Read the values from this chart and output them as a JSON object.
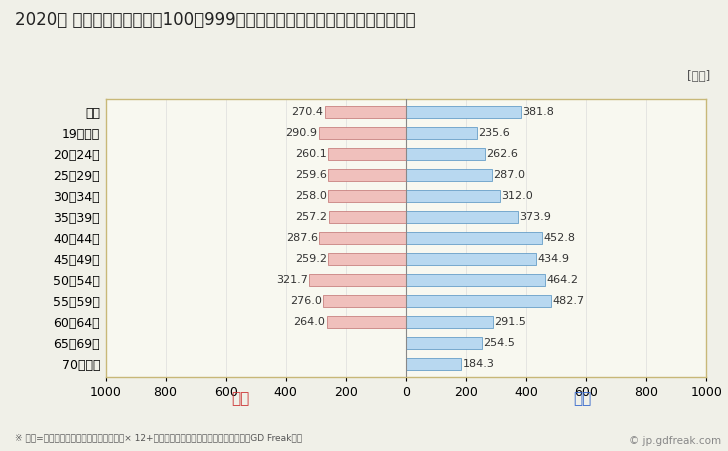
{
  "title": "2020年 民間企業（従業者数100～999人）フルタイム労働者の男女別平均年収",
  "ylabel_unit": "[万円]",
  "categories": [
    "全体",
    "19歳以下",
    "20～24歳",
    "25～29歳",
    "30～34歳",
    "35～39歳",
    "40～44歳",
    "45～49歳",
    "50～54歳",
    "55～59歳",
    "60～64歳",
    "65～69歳",
    "70歳以上"
  ],
  "female_values": [
    270.4,
    290.9,
    260.1,
    259.6,
    258.0,
    257.2,
    287.6,
    259.2,
    321.7,
    276.0,
    264.0,
    0,
    0
  ],
  "male_values": [
    381.8,
    235.6,
    262.6,
    287.0,
    312.0,
    373.9,
    452.8,
    434.9,
    464.2,
    482.7,
    291.5,
    254.5,
    184.3
  ],
  "female_color": "#f0c0bc",
  "female_edge_color": "#c07070",
  "male_color": "#b8d8f0",
  "male_edge_color": "#5090c0",
  "female_label": "女性",
  "male_label": "男性",
  "female_label_color": "#cc3333",
  "male_label_color": "#3366cc",
  "xlim": [
    -1000,
    1000
  ],
  "xticks": [
    -1000,
    -800,
    -600,
    -400,
    -200,
    0,
    200,
    400,
    600,
    800,
    1000
  ],
  "xticklabels": [
    "1000",
    "800",
    "600",
    "400",
    "200",
    "0",
    "200",
    "400",
    "600",
    "800",
    "1000"
  ],
  "background_color": "#f0f0e8",
  "plot_bg_color": "#f8f8f0",
  "border_color": "#c8b878",
  "grid_color": "#dddddd",
  "footnote": "※ 年収=「きまって支給する現金給与額」× 12+「年間賞与・その他特別給与額」としてGD Freak推計",
  "watermark": "© jp.gdfreak.com",
  "title_fontsize": 12,
  "tick_fontsize": 9,
  "category_fontsize": 9,
  "value_fontsize": 8,
  "bar_height": 0.55
}
